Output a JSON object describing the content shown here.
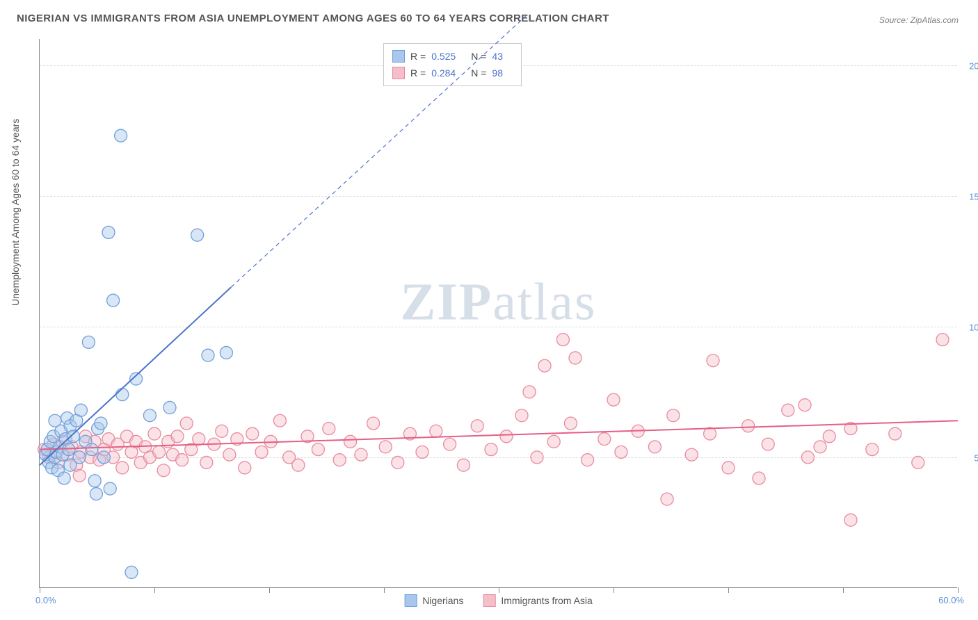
{
  "title": "NIGERIAN VS IMMIGRANTS FROM ASIA UNEMPLOYMENT AMONG AGES 60 TO 64 YEARS CORRELATION CHART",
  "source": "Source: ZipAtlas.com",
  "watermark_a": "ZIP",
  "watermark_b": "atlas",
  "ylabel": "Unemployment Among Ages 60 to 64 years",
  "chart": {
    "type": "scatter",
    "background_color": "#ffffff",
    "grid_color": "#dcdcdc",
    "axis_color": "#888888",
    "xlim": [
      0,
      60
    ],
    "ylim": [
      0,
      21
    ],
    "x_min_label": "0.0%",
    "x_max_label": "60.0%",
    "x_ticks": [
      0,
      7.5,
      15,
      22.5,
      30,
      37.5,
      45,
      52.5,
      60
    ],
    "y_gridlines": [
      5,
      10,
      15,
      20
    ],
    "y_labels": [
      "5.0%",
      "10.0%",
      "15.0%",
      "20.0%"
    ],
    "ytick_color": "#5a8fd6",
    "label_fontsize": 14,
    "marker_radius": 9,
    "marker_opacity": 0.45,
    "series": [
      {
        "name": "Nigerians",
        "fill": "#a9c7ec",
        "stroke": "#6fa0db",
        "R": "0.525",
        "N": "43",
        "trend": {
          "x1": 0,
          "y1": 4.7,
          "x2": 12.5,
          "y2": 11.5,
          "dash_x2": 32,
          "dash_y2": 22,
          "color": "#4a74c9",
          "width": 2
        },
        "points": [
          [
            0.4,
            5.1
          ],
          [
            0.5,
            5.3
          ],
          [
            0.6,
            4.8
          ],
          [
            0.7,
            5.6
          ],
          [
            0.8,
            4.6
          ],
          [
            0.9,
            5.8
          ],
          [
            1.0,
            5.0
          ],
          [
            1.0,
            6.4
          ],
          [
            1.1,
            5.2
          ],
          [
            1.2,
            4.5
          ],
          [
            1.3,
            5.4
          ],
          [
            1.4,
            6.0
          ],
          [
            1.5,
            5.1
          ],
          [
            1.6,
            4.2
          ],
          [
            1.7,
            5.7
          ],
          [
            1.8,
            6.5
          ],
          [
            1.9,
            5.3
          ],
          [
            2.0,
            6.2
          ],
          [
            2.0,
            4.7
          ],
          [
            2.2,
            5.8
          ],
          [
            2.4,
            6.4
          ],
          [
            2.6,
            5.0
          ],
          [
            2.7,
            6.8
          ],
          [
            3.0,
            5.6
          ],
          [
            3.2,
            9.4
          ],
          [
            3.4,
            5.3
          ],
          [
            3.6,
            4.1
          ],
          [
            3.8,
            6.1
          ],
          [
            3.7,
            3.6
          ],
          [
            4.0,
            6.3
          ],
          [
            4.2,
            5.0
          ],
          [
            4.5,
            13.6
          ],
          [
            4.6,
            3.8
          ],
          [
            4.8,
            11.0
          ],
          [
            5.3,
            17.3
          ],
          [
            5.4,
            7.4
          ],
          [
            6.0,
            0.6
          ],
          [
            6.3,
            8.0
          ],
          [
            7.2,
            6.6
          ],
          [
            8.5,
            6.9
          ],
          [
            10.3,
            13.5
          ],
          [
            11.0,
            8.9
          ],
          [
            12.2,
            9.0
          ]
        ]
      },
      {
        "name": "Immigrants from Asia",
        "fill": "#f5bfca",
        "stroke": "#e98aa0",
        "R": "0.284",
        "N": "98",
        "trend": {
          "x1": 0,
          "y1": 5.3,
          "x2": 60,
          "y2": 6.4,
          "color": "#e55f85",
          "width": 2
        },
        "points": [
          [
            0.3,
            5.3
          ],
          [
            0.6,
            5.0
          ],
          [
            0.9,
            5.5
          ],
          [
            1.2,
            4.8
          ],
          [
            1.5,
            5.6
          ],
          [
            1.8,
            5.1
          ],
          [
            2.1,
            5.4
          ],
          [
            2.4,
            4.7
          ],
          [
            2.7,
            5.2
          ],
          [
            2.6,
            4.3
          ],
          [
            3.0,
            5.8
          ],
          [
            3.3,
            5.0
          ],
          [
            3.6,
            5.6
          ],
          [
            3.9,
            4.9
          ],
          [
            4.2,
            5.3
          ],
          [
            4.5,
            5.7
          ],
          [
            4.8,
            5.0
          ],
          [
            5.1,
            5.5
          ],
          [
            5.4,
            4.6
          ],
          [
            5.7,
            5.8
          ],
          [
            6.0,
            5.2
          ],
          [
            6.3,
            5.6
          ],
          [
            6.6,
            4.8
          ],
          [
            6.9,
            5.4
          ],
          [
            7.2,
            5.0
          ],
          [
            7.5,
            5.9
          ],
          [
            7.8,
            5.2
          ],
          [
            8.1,
            4.5
          ],
          [
            8.4,
            5.6
          ],
          [
            8.7,
            5.1
          ],
          [
            9.0,
            5.8
          ],
          [
            9.3,
            4.9
          ],
          [
            9.6,
            6.3
          ],
          [
            9.9,
            5.3
          ],
          [
            10.4,
            5.7
          ],
          [
            10.9,
            4.8
          ],
          [
            11.4,
            5.5
          ],
          [
            11.9,
            6.0
          ],
          [
            12.4,
            5.1
          ],
          [
            12.9,
            5.7
          ],
          [
            13.4,
            4.6
          ],
          [
            13.9,
            5.9
          ],
          [
            14.5,
            5.2
          ],
          [
            15.1,
            5.6
          ],
          [
            15.7,
            6.4
          ],
          [
            16.3,
            5.0
          ],
          [
            16.9,
            4.7
          ],
          [
            17.5,
            5.8
          ],
          [
            18.2,
            5.3
          ],
          [
            18.9,
            6.1
          ],
          [
            19.6,
            4.9
          ],
          [
            20.3,
            5.6
          ],
          [
            21.0,
            5.1
          ],
          [
            21.8,
            6.3
          ],
          [
            22.6,
            5.4
          ],
          [
            23.4,
            4.8
          ],
          [
            24.2,
            5.9
          ],
          [
            25.0,
            5.2
          ],
          [
            25.9,
            6.0
          ],
          [
            26.8,
            5.5
          ],
          [
            27.7,
            4.7
          ],
          [
            28.6,
            6.2
          ],
          [
            29.5,
            5.3
          ],
          [
            30.5,
            5.8
          ],
          [
            31.5,
            6.6
          ],
          [
            32.0,
            7.5
          ],
          [
            32.5,
            5.0
          ],
          [
            33.0,
            8.5
          ],
          [
            33.6,
            5.6
          ],
          [
            34.2,
            9.5
          ],
          [
            34.7,
            6.3
          ],
          [
            35.8,
            4.9
          ],
          [
            35.0,
            8.8
          ],
          [
            36.9,
            5.7
          ],
          [
            37.5,
            7.2
          ],
          [
            38.0,
            5.2
          ],
          [
            39.1,
            6.0
          ],
          [
            40.2,
            5.4
          ],
          [
            41.4,
            6.6
          ],
          [
            41.0,
            3.4
          ],
          [
            42.6,
            5.1
          ],
          [
            43.8,
            5.9
          ],
          [
            44.0,
            8.7
          ],
          [
            45.0,
            4.6
          ],
          [
            46.3,
            6.2
          ],
          [
            47.0,
            4.2
          ],
          [
            47.6,
            5.5
          ],
          [
            48.9,
            6.8
          ],
          [
            50.2,
            5.0
          ],
          [
            50.0,
            7.0
          ],
          [
            51.0,
            5.4
          ],
          [
            51.6,
            5.8
          ],
          [
            53.0,
            6.1
          ],
          [
            53.0,
            2.6
          ],
          [
            54.4,
            5.3
          ],
          [
            55.9,
            5.9
          ],
          [
            57.4,
            4.8
          ],
          [
            59.0,
            9.5
          ]
        ]
      }
    ]
  },
  "legend": {
    "items": [
      "Nigerians",
      "Immigrants from Asia"
    ]
  }
}
